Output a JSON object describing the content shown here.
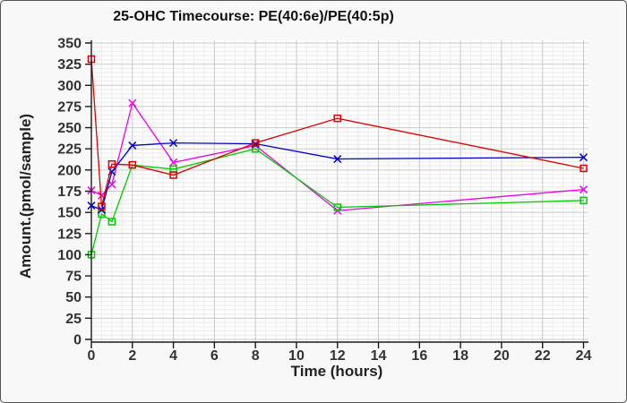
{
  "figure": {
    "background": "#f8f8f8",
    "border_color": "#555555",
    "plot_background": "#fdfdfd",
    "grid_major_color": "#c9c9c9",
    "grid_minor_color": "#ececec",
    "axis_color": "#1a1a1a",
    "tick_label_color": "#333333"
  },
  "chart_data": {
    "type": "line",
    "title": "25-OHC Timecourse: PE(40:6e)/PE(40:5p)",
    "xlabel": "Time (hours)",
    "ylabel": "Amount.(pmol/sample)",
    "xlim": [
      0,
      24
    ],
    "ylim": [
      0,
      350
    ],
    "x_tick_step": 2,
    "y_tick_step": 25,
    "x_minor_step": 0.5,
    "y_minor_step": 5,
    "grid": "on",
    "legend": "none",
    "x": [
      0,
      0.5,
      1,
      2,
      4,
      8,
      12,
      24
    ],
    "series": [
      {
        "name": "magenta-x-series",
        "color": "#ee00ee",
        "marker": "x",
        "values": [
          176,
          170,
          183,
          279,
          209,
          229,
          152,
          177
        ]
      },
      {
        "name": "green-square-series",
        "color": "#00cc00",
        "marker": "square",
        "values": [
          100,
          148,
          139,
          206,
          201,
          225,
          156,
          164
        ]
      },
      {
        "name": "blue-x-series",
        "color": "#0000cc",
        "marker": "x",
        "values": [
          158,
          153,
          198,
          229,
          232,
          231,
          213,
          215
        ]
      },
      {
        "name": "red-square-series",
        "color": "#dd0000",
        "marker": "square",
        "values": [
          331,
          157,
          207,
          206,
          194,
          232,
          261,
          202
        ]
      }
    ]
  }
}
